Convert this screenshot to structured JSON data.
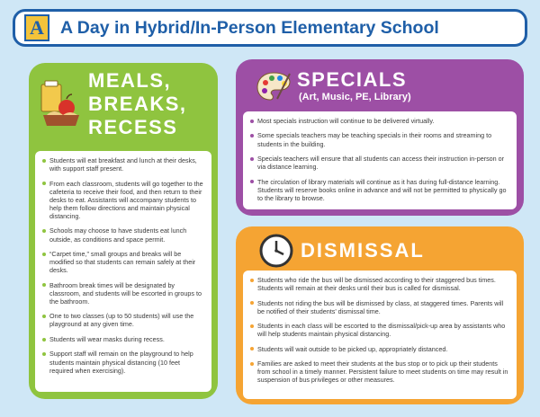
{
  "header": {
    "logo_letter": "A",
    "title": "A Day in Hybrid/In-Person Elementary School"
  },
  "meals": {
    "heading_lines": [
      "MEALS,",
      "BREAKS,",
      "RECESS"
    ],
    "icon": "lunch-icon",
    "color": "#8fc43f",
    "items": [
      "Students will eat breakfast and lunch at their desks, with support staff present.",
      "From each classroom, students will go together to the cafeteria to receive their food, and then return to their desks to eat. Assistants will accompany students to help them follow directions and maintain physical distancing.",
      "Schools may choose to have students eat lunch outside, as conditions and space permit.",
      "“Carpet time,” small groups and breaks will be modified so that students can remain safely at their desks.",
      "Bathroom break times will be designated by classroom, and students will be escorted in groups to the bathroom.",
      "One to two classes (up to 50 students) will use the playground at any given time.",
      "Students will wear masks during recess.",
      "Support staff will remain on the playground to help students maintain physical distancing (10 feet required when exercising)."
    ]
  },
  "specials": {
    "heading": "SPECIALS",
    "subheading": "(Art, Music, PE, Library)",
    "icon": "palette-icon",
    "color": "#9d4fa5",
    "items": [
      "Most specials instruction will continue to be delivered virtually.",
      "Some specials teachers may be teaching specials in their rooms and streaming to students in the building.",
      "Specials teachers will ensure that all students can access their instruction in-person or via distance learning.",
      "The circulation of library materials will continue as it has during full-distance learning. Students will reserve books online in advance and will not be permitted to physically go to the library to browse."
    ]
  },
  "dismissal": {
    "heading": "DISMISSAL",
    "icon": "clock-icon",
    "color": "#f5a433",
    "items": [
      "Students who ride the bus will be dismissed according to their staggered bus times. Students will remain at their desks until their bus is called for dismissal.",
      "Students not riding the bus will be dismissed by class, at staggered times. Parents will be notified of their students’ dismissal time.",
      "Students in each class will be escorted to the dismissal/pick-up area by assistants who will help students maintain physical distancing.",
      "Students will wait outside to be picked up, appropriately distanced.",
      "Families are asked to meet their students at the bus stop or to pick up their students from school in a timely manner. Persistent failure to meet students on time may result in suspension of bus privileges or other measures."
    ]
  }
}
